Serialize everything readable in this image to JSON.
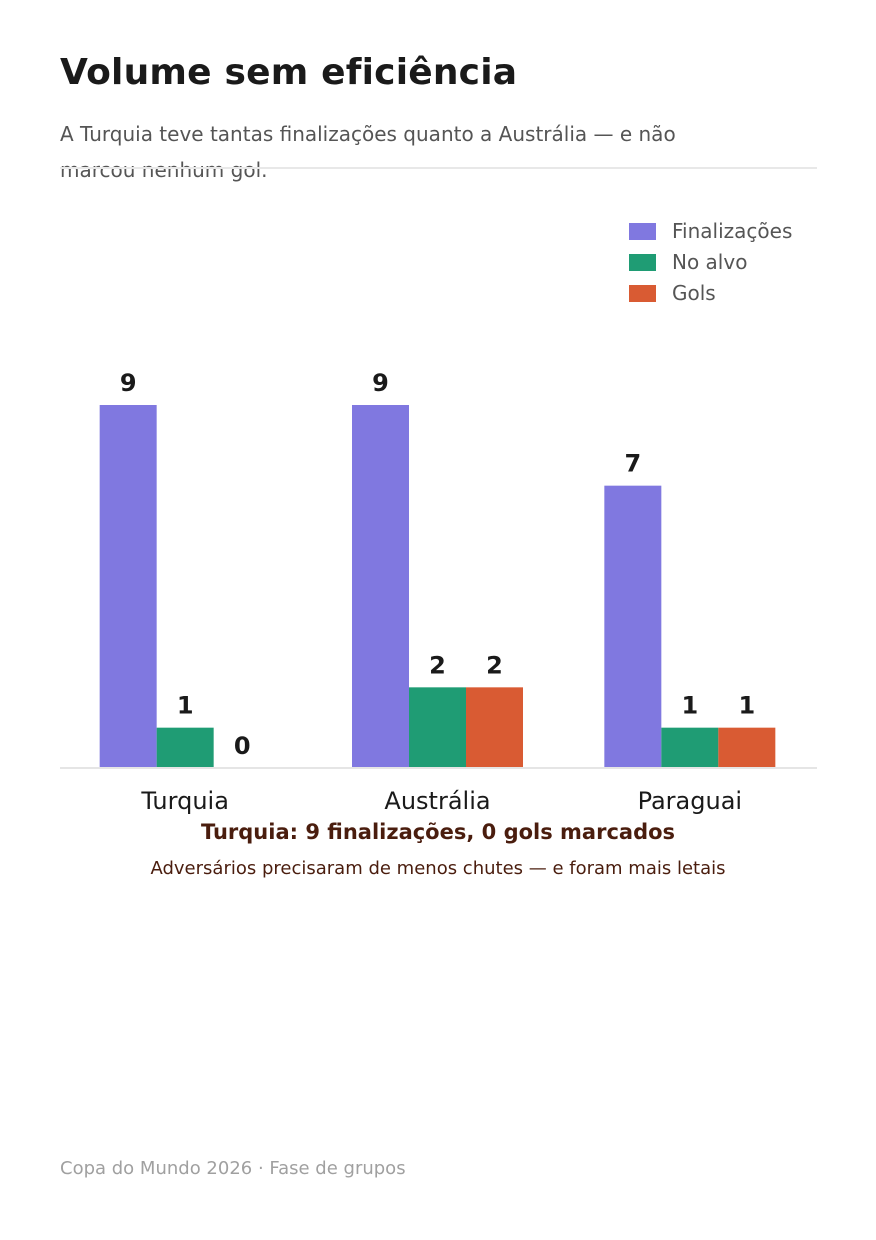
{
  "header": {
    "title": "Volume sem eficiência",
    "subtitle": "A Turquia teve tantas finalizações quanto a Austrália — e não marcou nenhum gol."
  },
  "annotation": {
    "title": "Turquia: 9 finalizações, 0 gols marcados",
    "subtitle": "Adversários precisaram de menos chutes — e foram mais letais"
  },
  "footer": {
    "source": "Copa do Mundo 2026 · Fase de grupos"
  },
  "chart_data": {
    "type": "bar",
    "categories": [
      "Turquia",
      "Austrália",
      "Paraguai"
    ],
    "series": [
      {
        "name": "Finalizações",
        "values": [
          9,
          9,
          7
        ],
        "color": "#8078e0"
      },
      {
        "name": "No alvo",
        "values": [
          1,
          2,
          1
        ],
        "color": "#1f9c74"
      },
      {
        "name": "Gols",
        "values": [
          0,
          2,
          1
        ],
        "color": "#d95b33"
      }
    ],
    "ylim": [
      0,
      9
    ],
    "legend": "top-right",
    "grid": false,
    "data_labels": true
  }
}
